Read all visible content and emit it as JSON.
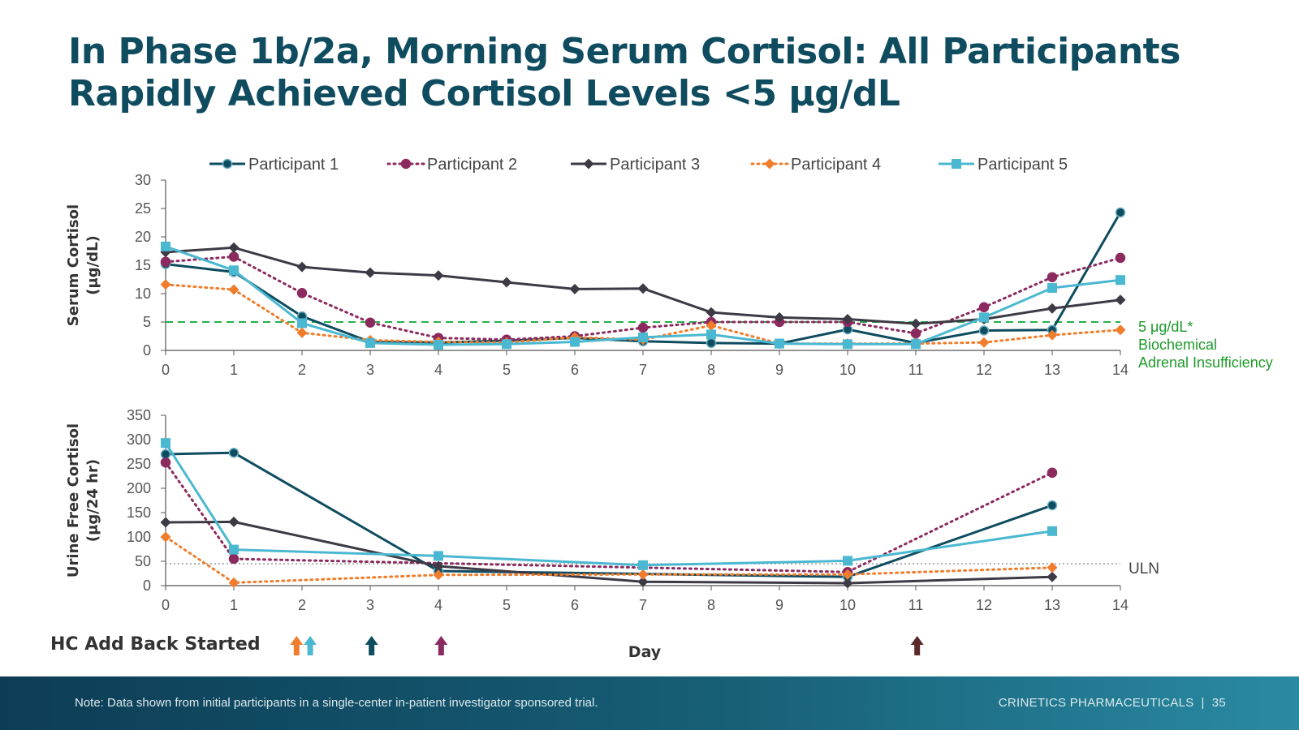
{
  "slide": {
    "title_line1": "In Phase 1b/2a, Morning Serum Cortisol: All Participants",
    "title_line2": "Rapidly Achieved Cortisol Levels <5 μg/dL",
    "footer_note": "Note: Data shown from initial participants in a single-center in-patient investigator sponsored trial.",
    "footer_company": "CRINETICS PHARMACEUTICALS",
    "footer_page": "35",
    "hc_label": "HC Add Back Started",
    "x_axis_label": "Day"
  },
  "colors": {
    "participant_1": "#0e4c60",
    "participant_2": "#8b2a5e",
    "participant_3": "#3d3a45",
    "participant_4": "#ef7d2c",
    "participant_5": "#4ab8d1",
    "threshold": "#22b14c",
    "uln": "#999999",
    "arrow_dark_red": "#5a2a2a"
  },
  "chart_data": [
    {
      "type": "line",
      "ylabel": "Serum Cortisol (μg/dL)",
      "ylabel_lines": [
        "Serum Cortisol",
        "(μg/dL)"
      ],
      "xlabel": "",
      "xlim": [
        0,
        14
      ],
      "ylim": [
        0,
        30
      ],
      "x_ticks": [
        0,
        1,
        2,
        3,
        4,
        5,
        6,
        7,
        8,
        9,
        10,
        11,
        12,
        13,
        14
      ],
      "y_ticks": [
        0,
        5,
        10,
        15,
        20,
        25,
        30
      ],
      "legend_position": "top",
      "reference_line": {
        "y": 5,
        "style": "dashed",
        "label_lines": [
          "5 μg/dL*",
          "Biochemical",
          "Adrenal Insufficiency"
        ]
      },
      "series": [
        {
          "name": "Participant 1",
          "style": "solid",
          "marker": "circle",
          "x": [
            0,
            1,
            2,
            3,
            4,
            5,
            6,
            7,
            8,
            9,
            10,
            11,
            12,
            13,
            14
          ],
          "y": [
            15.2,
            13.8,
            6.0,
            1.5,
            1.4,
            1.7,
            2.2,
            1.6,
            1.3,
            1.2,
            3.7,
            1.3,
            3.5,
            3.6,
            24.3
          ]
        },
        {
          "name": "Participant 2",
          "style": "dotted",
          "marker": "circle",
          "x": [
            0,
            1,
            2,
            3,
            4,
            5,
            6,
            7,
            8,
            9,
            10,
            11,
            12,
            13,
            14
          ],
          "y": [
            15.6,
            16.5,
            10.1,
            4.9,
            2.2,
            1.9,
            2.5,
            4.0,
            5.0,
            5.0,
            5.0,
            3.0,
            7.6,
            12.9,
            16.3
          ]
        },
        {
          "name": "Participant 3",
          "style": "solid",
          "marker": "diamond",
          "x": [
            0,
            1,
            2,
            3,
            4,
            5,
            6,
            7,
            8,
            9,
            10,
            11,
            12,
            13,
            14
          ],
          "y": [
            17.3,
            18.1,
            14.7,
            13.7,
            13.2,
            12.0,
            10.8,
            10.9,
            6.7,
            5.8,
            5.5,
            4.7,
            5.5,
            7.4,
            8.9
          ]
        },
        {
          "name": "Participant 4",
          "style": "dotted",
          "marker": "diamond",
          "x": [
            0,
            1,
            2,
            3,
            4,
            5,
            6,
            7,
            8,
            9,
            10,
            11,
            12,
            13,
            14
          ],
          "y": [
            11.6,
            10.7,
            3.1,
            1.8,
            1.5,
            1.4,
            2.3,
            1.9,
            4.4,
            1.2,
            1.2,
            1.2,
            1.4,
            2.7,
            3.6
          ]
        },
        {
          "name": "Participant  5",
          "style": "solid",
          "marker": "square",
          "x": [
            0,
            1,
            2,
            3,
            4,
            5,
            6,
            7,
            8,
            9,
            10,
            11,
            12,
            13,
            14
          ],
          "y": [
            18.3,
            14.1,
            4.8,
            1.3,
            1.0,
            1.1,
            1.5,
            2.3,
            2.8,
            1.2,
            1.1,
            1.1,
            5.8,
            11.0,
            12.4
          ]
        }
      ]
    },
    {
      "type": "line",
      "ylabel": "Urine Free Cortisol (μg/24 hr)",
      "ylabel_lines": [
        "Urine Free Cortisol",
        "(μg/24 hr)"
      ],
      "xlabel": "Day",
      "xlim": [
        0,
        14
      ],
      "ylim": [
        0,
        350
      ],
      "x_ticks": [
        0,
        1,
        2,
        3,
        4,
        5,
        6,
        7,
        8,
        9,
        10,
        11,
        12,
        13,
        14
      ],
      "y_ticks": [
        0,
        50,
        100,
        150,
        200,
        250,
        300,
        350
      ],
      "reference_line": {
        "y": 45,
        "style": "dotted",
        "label_lines": [
          "ULN"
        ]
      },
      "series": [
        {
          "name": "Participant 1",
          "style": "solid",
          "marker": "circle",
          "x": [
            0,
            1,
            4,
            10,
            13
          ],
          "y": [
            270,
            273,
            30,
            18,
            165
          ]
        },
        {
          "name": "Participant 2",
          "style": "dotted",
          "marker": "circle",
          "x": [
            0,
            1,
            10,
            13
          ],
          "y": [
            253,
            55,
            28,
            232
          ]
        },
        {
          "name": "Participant 3",
          "style": "solid",
          "marker": "diamond",
          "x": [
            0,
            1,
            4,
            7,
            10,
            13
          ],
          "y": [
            130,
            131,
            40,
            8,
            5,
            18
          ]
        },
        {
          "name": "Participant 4",
          "style": "dotted",
          "marker": "diamond",
          "x": [
            0,
            1,
            4,
            7,
            10,
            13
          ],
          "y": [
            100,
            6,
            22,
            23,
            23,
            37
          ]
        },
        {
          "name": "Participant  5",
          "style": "solid",
          "marker": "square",
          "x": [
            0,
            1,
            4,
            7,
            10,
            13
          ],
          "y": [
            293,
            74,
            61,
            42,
            51,
            112
          ]
        }
      ]
    }
  ],
  "hc_arrows": [
    {
      "day": 1.92,
      "color_key": "participant_4"
    },
    {
      "day": 2.12,
      "color_key": "participant_5"
    },
    {
      "day": 3.02,
      "color_key": "participant_1"
    },
    {
      "day": 4.04,
      "color_key": "participant_2"
    },
    {
      "day": 11.02,
      "color_key": "arrow_dark_red"
    }
  ]
}
